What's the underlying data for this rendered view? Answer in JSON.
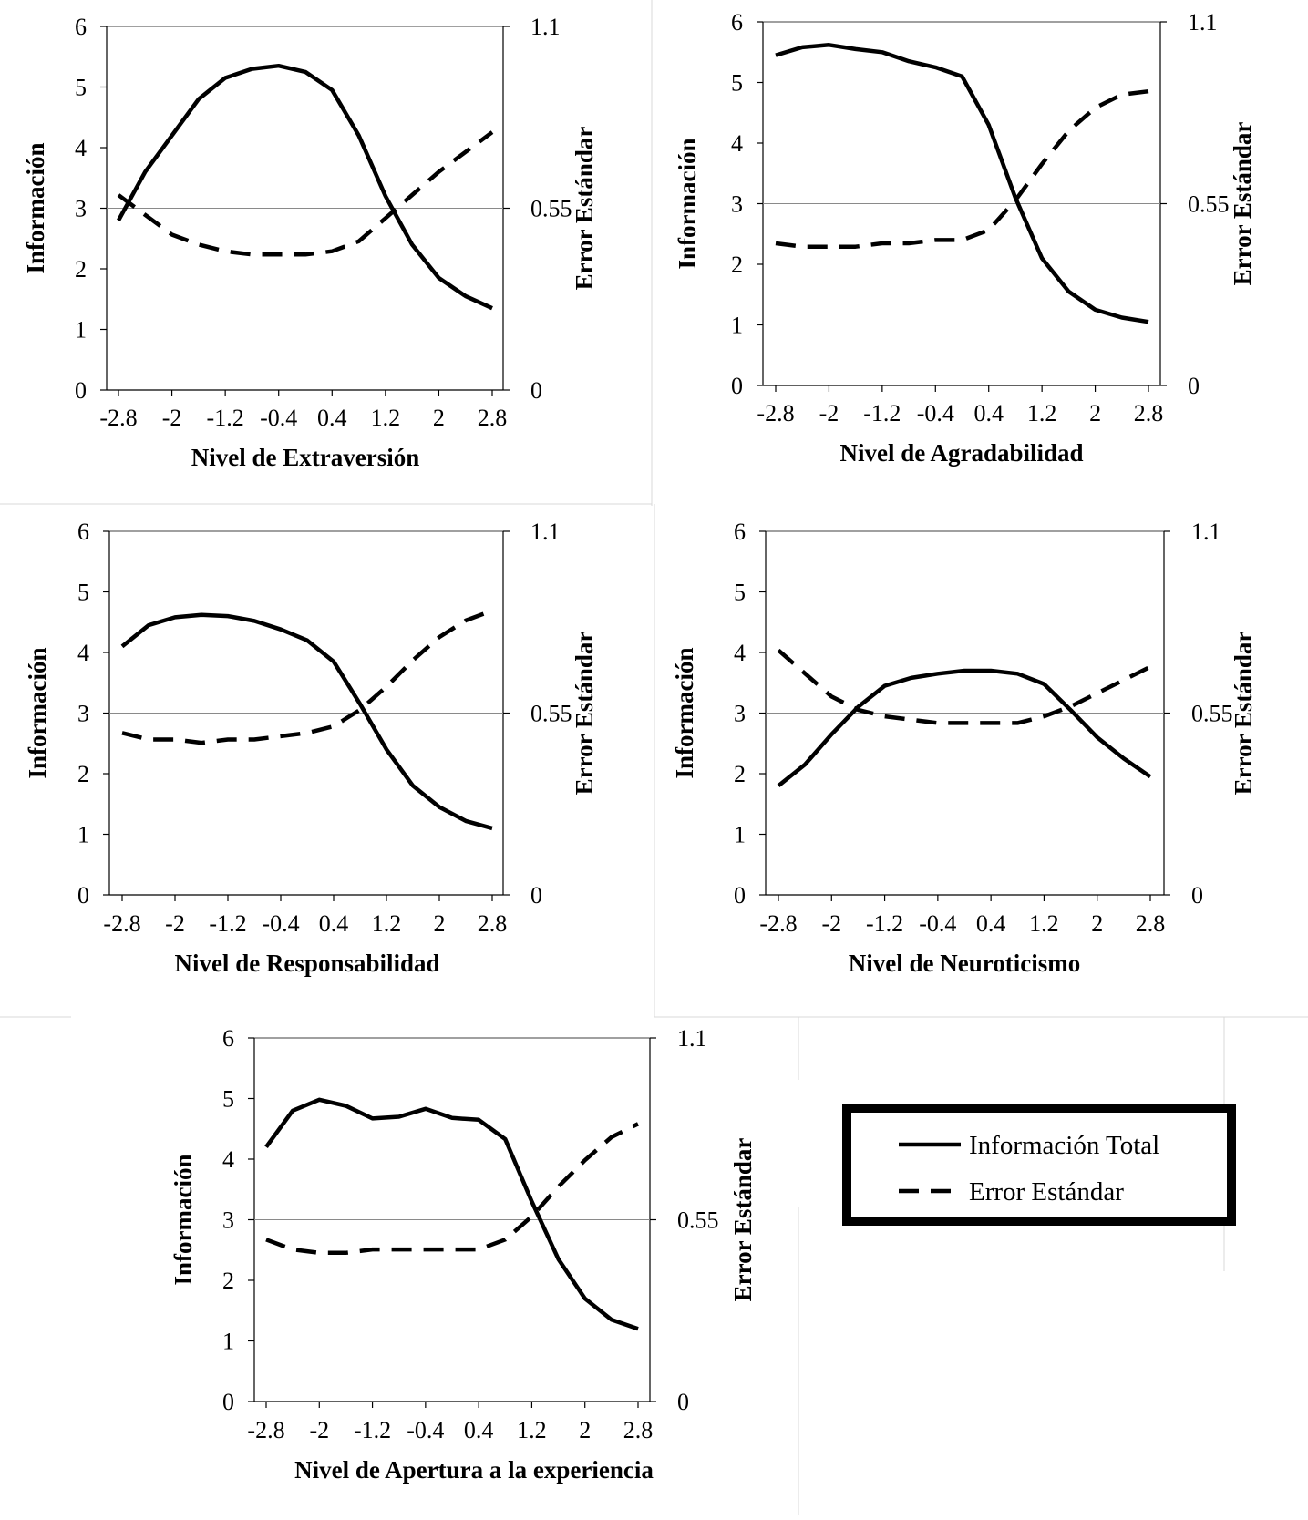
{
  "legend": {
    "items": [
      {
        "label": "Información Total",
        "style": "solid"
      },
      {
        "label": "Error Estándar",
        "style": "dashed"
      }
    ]
  },
  "chart_data": [
    {
      "type": "line",
      "xlabel": "Nivel de Extraversión",
      "ylabel": "Información",
      "y2label": "Error Estándar",
      "ylim": [
        0,
        6
      ],
      "y2lim": [
        0,
        1.1
      ],
      "x_tick_labels": [
        "-2.8",
        "-2",
        "-1.2",
        "-0.4",
        "0.4",
        "1.2",
        "2",
        "2.8"
      ],
      "y_tick_labels": [
        "0",
        "1",
        "2",
        "3",
        "4",
        "5",
        "6"
      ],
      "y2_tick_labels": [
        "0",
        "0.55",
        "1.1"
      ],
      "x": [
        -2.8,
        -2.4,
        -2.0,
        -1.6,
        -1.2,
        -0.8,
        -0.4,
        0.0,
        0.4,
        0.8,
        1.2,
        1.6,
        2.0,
        2.4,
        2.8
      ],
      "series": [
        {
          "name": "Información Total",
          "axis": "left",
          "values": [
            2.8,
            3.6,
            4.2,
            4.8,
            5.15,
            5.3,
            5.35,
            5.25,
            4.95,
            4.2,
            3.2,
            2.4,
            1.85,
            1.55,
            1.35
          ]
        },
        {
          "name": "Error Estándar",
          "axis": "right",
          "values": [
            0.59,
            0.53,
            0.47,
            0.44,
            0.42,
            0.41,
            0.41,
            0.41,
            0.42,
            0.45,
            0.52,
            0.59,
            0.66,
            0.72,
            0.78
          ]
        }
      ]
    },
    {
      "type": "line",
      "xlabel": "Nivel de Agradabilidad",
      "ylabel": "Información",
      "y2label": "Error Estándar",
      "ylim": [
        0,
        6
      ],
      "y2lim": [
        0,
        1.1
      ],
      "x_tick_labels": [
        "-2.8",
        "-2",
        "-1.2",
        "-0.4",
        "0.4",
        "1.2",
        "2",
        "2.8"
      ],
      "y_tick_labels": [
        "0",
        "1",
        "2",
        "3",
        "4",
        "5",
        "6"
      ],
      "y2_tick_labels": [
        "0",
        "0.55",
        "1.1"
      ],
      "x": [
        -2.8,
        -2.4,
        -2.0,
        -1.6,
        -1.2,
        -0.8,
        -0.4,
        0.0,
        0.4,
        0.8,
        1.2,
        1.6,
        2.0,
        2.4,
        2.8
      ],
      "series": [
        {
          "name": "Información Total",
          "axis": "left",
          "values": [
            5.45,
            5.58,
            5.62,
            5.55,
            5.5,
            5.35,
            5.25,
            5.1,
            4.3,
            3.1,
            2.1,
            1.55,
            1.25,
            1.12,
            1.05
          ]
        },
        {
          "name": "Error Estándar",
          "axis": "right",
          "values": [
            0.43,
            0.42,
            0.42,
            0.42,
            0.43,
            0.43,
            0.44,
            0.44,
            0.47,
            0.56,
            0.67,
            0.77,
            0.84,
            0.88,
            0.89
          ]
        }
      ]
    },
    {
      "type": "line",
      "xlabel": "Nivel de Responsabilidad",
      "ylabel": "Información",
      "y2label": "Error Estándar",
      "ylim": [
        0,
        6
      ],
      "y2lim": [
        0,
        1.1
      ],
      "x_tick_labels": [
        "-2.8",
        "-2",
        "-1.2",
        "-0.4",
        "0.4",
        "1.2",
        "2",
        "2.8"
      ],
      "y_tick_labels": [
        "0",
        "1",
        "2",
        "3",
        "4",
        "5",
        "6"
      ],
      "y2_tick_labels": [
        "0",
        "0.55",
        "1.1"
      ],
      "x": [
        -2.8,
        -2.4,
        -2.0,
        -1.6,
        -1.2,
        -0.8,
        -0.4,
        0.0,
        0.4,
        0.8,
        1.2,
        1.6,
        2.0,
        2.4,
        2.8
      ],
      "series": [
        {
          "name": "Información Total",
          "axis": "left",
          "values": [
            4.1,
            4.45,
            4.58,
            4.62,
            4.6,
            4.52,
            4.38,
            4.2,
            3.85,
            3.15,
            2.4,
            1.8,
            1.45,
            1.22,
            1.1
          ]
        },
        {
          "name": "Error Estándar",
          "axis": "right",
          "values": [
            0.49,
            0.47,
            0.47,
            0.46,
            0.47,
            0.47,
            0.48,
            0.49,
            0.51,
            0.56,
            0.63,
            0.71,
            0.78,
            0.83,
            0.86
          ]
        }
      ]
    },
    {
      "type": "line",
      "xlabel": "Nivel de Neuroticismo",
      "ylabel": "Información",
      "y2label": "Error Estándar",
      "ylim": [
        0,
        6
      ],
      "y2lim": [
        0,
        1.1
      ],
      "x_tick_labels": [
        "-2.8",
        "-2",
        "-1.2",
        "-0.4",
        "0.4",
        "1.2",
        "2",
        "2.8"
      ],
      "y_tick_labels": [
        "0",
        "1",
        "2",
        "3",
        "4",
        "5",
        "6"
      ],
      "y2_tick_labels": [
        "0",
        "0.55",
        "1.1"
      ],
      "x": [
        -2.8,
        -2.4,
        -2.0,
        -1.6,
        -1.2,
        -0.8,
        -0.4,
        0.0,
        0.4,
        0.8,
        1.2,
        1.6,
        2.0,
        2.4,
        2.8
      ],
      "series": [
        {
          "name": "Información Total",
          "axis": "left",
          "values": [
            1.8,
            2.15,
            2.65,
            3.1,
            3.45,
            3.58,
            3.65,
            3.7,
            3.7,
            3.65,
            3.48,
            3.05,
            2.6,
            2.25,
            1.95
          ]
        },
        {
          "name": "Error Estándar",
          "axis": "right",
          "values": [
            0.74,
            0.67,
            0.6,
            0.56,
            0.54,
            0.53,
            0.52,
            0.52,
            0.52,
            0.52,
            0.54,
            0.57,
            0.61,
            0.65,
            0.69
          ]
        }
      ]
    },
    {
      "type": "line",
      "xlabel": "Nivel de Apertura a la experiencia",
      "ylabel": "Información",
      "y2label": "Error Estándar",
      "ylim": [
        0,
        6
      ],
      "y2lim": [
        0,
        1.1
      ],
      "x_tick_labels": [
        "-2.8",
        "-2",
        "-1.2",
        "-0.4",
        "0.4",
        "1.2",
        "2",
        "2.8"
      ],
      "y_tick_labels": [
        "0",
        "1",
        "2",
        "3",
        "4",
        "5",
        "6"
      ],
      "y2_tick_labels": [
        "0",
        "0.55",
        "1.1"
      ],
      "x": [
        -2.8,
        -2.4,
        -2.0,
        -1.6,
        -1.2,
        -0.8,
        -0.4,
        0.0,
        0.4,
        0.8,
        1.2,
        1.6,
        2.0,
        2.4,
        2.8
      ],
      "series": [
        {
          "name": "Información Total",
          "axis": "left",
          "values": [
            4.2,
            4.8,
            4.98,
            4.88,
            4.67,
            4.7,
            4.83,
            4.68,
            4.65,
            4.33,
            3.3,
            2.35,
            1.7,
            1.35,
            1.2
          ]
        },
        {
          "name": "Error Estándar",
          "axis": "right",
          "values": [
            0.49,
            0.46,
            0.45,
            0.45,
            0.46,
            0.46,
            0.46,
            0.46,
            0.46,
            0.49,
            0.56,
            0.65,
            0.73,
            0.8,
            0.84
          ]
        }
      ]
    }
  ]
}
